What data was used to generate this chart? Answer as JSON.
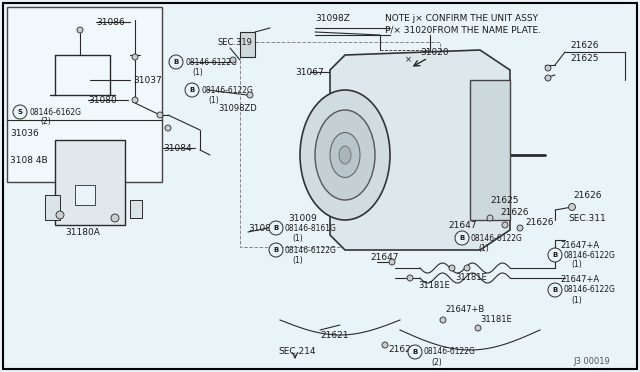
{
  "bg_color": "#e8f4f8",
  "border_color": "#000000",
  "note_line1": "NOTE j× CONFIRM THE UNIT ASSY",
  "note_line2": "P/× 31020FROM THE NAME PLATE.",
  "diagram_id": "J3 00019",
  "text_color": "#1a1a1a",
  "line_color": "#2a2a2a"
}
